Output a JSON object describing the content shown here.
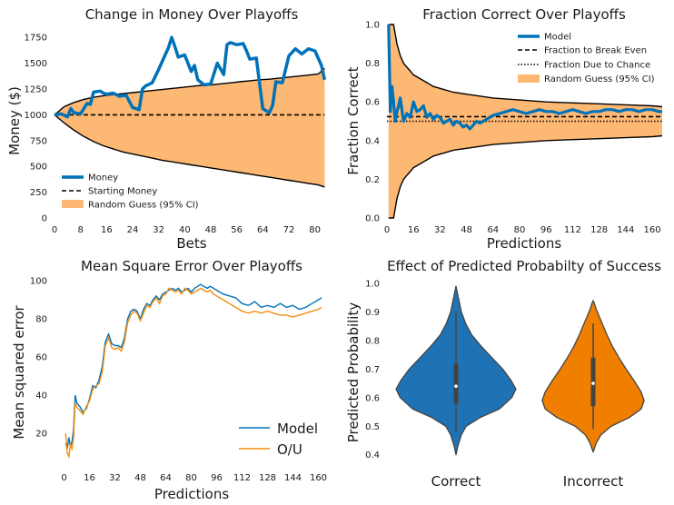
{
  "colors": {
    "model": "#0072b8",
    "band": "#fdb874",
    "band_edge": "#000000",
    "ou": "#f28e0e",
    "violin_correct": "#1f72b4",
    "violin_incorrect": "#f07f00",
    "violin_edge": "#444444"
  },
  "chart_data": [
    {
      "id": "money",
      "type": "line",
      "title": "Change in Money Over Playoffs",
      "xlabel": "Bets",
      "ylabel": "Money ($)",
      "xlim": [
        0,
        84
      ],
      "ylim": [
        0,
        1875
      ],
      "xticks": [
        0,
        8,
        16,
        24,
        32,
        40,
        48,
        56,
        64,
        72,
        80
      ],
      "yticks": [
        0,
        250,
        500,
        750,
        1000,
        1250,
        1500,
        1750
      ],
      "legend": {
        "placement": "lower-left",
        "entries": [
          "Money",
          "Starting Money",
          "Random Guess (95% CI)"
        ]
      },
      "series": [
        {
          "name": "Money",
          "x": [
            0,
            2,
            4,
            5,
            6,
            8,
            9,
            10,
            11,
            12,
            14,
            15,
            16,
            18,
            20,
            22,
            24,
            26,
            27,
            28,
            30,
            32,
            34,
            35,
            36,
            37,
            38,
            40,
            42,
            43,
            44,
            46,
            48,
            50,
            52,
            53,
            54,
            56,
            58,
            59,
            60,
            62,
            64,
            66,
            67,
            68,
            70,
            72,
            74,
            76,
            78,
            80,
            82,
            83
          ],
          "y": [
            1000,
            1010,
            980,
            1060,
            1020,
            1010,
            1060,
            1110,
            1100,
            1220,
            1230,
            1210,
            1200,
            1210,
            1180,
            1190,
            1070,
            1050,
            1250,
            1280,
            1310,
            1440,
            1580,
            1650,
            1750,
            1660,
            1560,
            1580,
            1420,
            1480,
            1340,
            1290,
            1300,
            1500,
            1390,
            1680,
            1700,
            1680,
            1690,
            1620,
            1540,
            1550,
            1060,
            1020,
            1090,
            1320,
            1310,
            1570,
            1640,
            1590,
            1640,
            1620,
            1480,
            1340
          ]
        },
        {
          "name": "Starting Money",
          "x": [
            0,
            83
          ],
          "y": [
            1000,
            1000
          ]
        }
      ],
      "band": {
        "name": "Random Guess (95% CI)",
        "x": [
          0,
          3,
          6,
          9,
          12,
          15,
          18,
          21,
          24,
          27,
          30,
          33,
          36,
          39,
          42,
          45,
          48,
          51,
          54,
          57,
          60,
          63,
          66,
          69,
          72,
          75,
          78,
          81,
          83
        ],
        "upper": [
          1000,
          1080,
          1120,
          1150,
          1170,
          1185,
          1195,
          1205,
          1215,
          1225,
          1235,
          1245,
          1255,
          1265,
          1275,
          1285,
          1290,
          1300,
          1310,
          1320,
          1330,
          1340,
          1345,
          1355,
          1365,
          1375,
          1385,
          1395,
          1450
        ],
        "lower": [
          1000,
          920,
          850,
          790,
          740,
          700,
          670,
          640,
          620,
          600,
          580,
          560,
          545,
          530,
          515,
          500,
          485,
          470,
          455,
          440,
          425,
          410,
          395,
          380,
          365,
          350,
          335,
          320,
          300
        ]
      }
    },
    {
      "id": "fraction",
      "type": "line",
      "title": "Fraction Correct Over Playoffs",
      "xlabel": "Predictions",
      "ylabel": "Fraction Correct",
      "xlim": [
        0,
        166
      ],
      "ylim": [
        0,
        1.0
      ],
      "xticks": [
        0,
        16,
        32,
        48,
        64,
        80,
        96,
        112,
        128,
        144,
        160
      ],
      "yticks": [
        0.0,
        0.2,
        0.4,
        0.6,
        0.8,
        1.0
      ],
      "legend": {
        "placement": "top-right",
        "entries": [
          "Model",
          "Fraction to Break Even",
          "Fraction Due to Chance",
          "Random Guess (95% CI)"
        ]
      },
      "series": [
        {
          "name": "Model",
          "x": [
            1,
            2,
            3,
            4,
            5,
            6,
            7,
            8,
            10,
            12,
            14,
            16,
            18,
            20,
            22,
            24,
            26,
            28,
            30,
            32,
            34,
            36,
            38,
            40,
            42,
            44,
            46,
            48,
            50,
            52,
            54,
            56,
            58,
            60,
            62,
            64,
            68,
            72,
            76,
            80,
            84,
            88,
            92,
            96,
            100,
            104,
            108,
            112,
            116,
            120,
            124,
            128,
            132,
            136,
            140,
            144,
            148,
            152,
            156,
            160,
            164,
            166
          ],
          "y": [
            1.0,
            0.55,
            0.68,
            0.6,
            0.5,
            0.55,
            0.58,
            0.62,
            0.5,
            0.54,
            0.52,
            0.6,
            0.55,
            0.56,
            0.58,
            0.52,
            0.54,
            0.51,
            0.53,
            0.52,
            0.49,
            0.5,
            0.51,
            0.48,
            0.5,
            0.49,
            0.47,
            0.48,
            0.46,
            0.48,
            0.5,
            0.49,
            0.5,
            0.51,
            0.52,
            0.53,
            0.54,
            0.55,
            0.56,
            0.55,
            0.54,
            0.55,
            0.56,
            0.55,
            0.55,
            0.54,
            0.55,
            0.56,
            0.55,
            0.54,
            0.55,
            0.55,
            0.56,
            0.56,
            0.55,
            0.56,
            0.56,
            0.55,
            0.56,
            0.56,
            0.55,
            0.55
          ]
        },
        {
          "name": "Fraction to Break Even",
          "x": [
            0,
            166
          ],
          "y": [
            0.524,
            0.524
          ]
        },
        {
          "name": "Fraction Due to Chance",
          "x": [
            0,
            166
          ],
          "y": [
            0.5,
            0.5
          ]
        }
      ],
      "band": {
        "name": "Random Guess (95% CI)",
        "x": [
          1,
          2,
          4,
          6,
          8,
          10,
          12,
          14,
          16,
          20,
          24,
          28,
          32,
          40,
          48,
          56,
          64,
          80,
          96,
          112,
          128,
          144,
          160,
          166
        ],
        "upper": [
          1.0,
          1.0,
          1.0,
          0.9,
          0.84,
          0.8,
          0.78,
          0.76,
          0.74,
          0.72,
          0.7,
          0.68,
          0.67,
          0.65,
          0.64,
          0.63,
          0.62,
          0.61,
          0.6,
          0.595,
          0.59,
          0.585,
          0.58,
          0.575
        ],
        "lower": [
          0.0,
          0.0,
          0.0,
          0.1,
          0.16,
          0.2,
          0.22,
          0.24,
          0.26,
          0.28,
          0.3,
          0.32,
          0.33,
          0.35,
          0.36,
          0.37,
          0.38,
          0.39,
          0.4,
          0.405,
          0.41,
          0.415,
          0.42,
          0.425
        ]
      }
    },
    {
      "id": "mse",
      "type": "line",
      "title": "Mean Square Error Over Playoffs",
      "xlabel": "Predictions",
      "ylabel": "Mean squared error",
      "xlim": [
        -6,
        166
      ],
      "ylim": [
        3,
        100
      ],
      "xticks": [
        0,
        16,
        32,
        48,
        64,
        80,
        96,
        112,
        128,
        144,
        160
      ],
      "yticks": [
        20,
        40,
        60,
        80,
        100
      ],
      "legend": {
        "placement": "lower-right",
        "entries": [
          "Model",
          "O/U"
        ]
      },
      "series": [
        {
          "name": "Model",
          "x": [
            1,
            2,
            3,
            4,
            5,
            6,
            7,
            8,
            10,
            12,
            14,
            16,
            18,
            20,
            22,
            24,
            26,
            28,
            30,
            32,
            34,
            36,
            38,
            40,
            42,
            44,
            46,
            48,
            50,
            52,
            54,
            56,
            58,
            60,
            62,
            64,
            66,
            68,
            70,
            72,
            74,
            76,
            78,
            80,
            82,
            84,
            86,
            88,
            90,
            92,
            94,
            96,
            100,
            104,
            108,
            112,
            116,
            120,
            124,
            128,
            132,
            136,
            140,
            144,
            148,
            152,
            156,
            160,
            162
          ],
          "y": [
            15,
            12,
            18,
            13,
            16,
            22,
            40,
            36,
            34,
            31,
            33,
            38,
            45,
            44,
            48,
            55,
            68,
            72,
            67,
            66,
            66,
            65,
            70,
            80,
            84,
            85,
            84,
            80,
            85,
            88,
            87,
            90,
            92,
            90,
            93,
            94,
            95,
            96,
            95,
            96,
            94,
            95,
            96,
            94,
            96,
            97,
            98,
            97,
            96,
            97,
            96,
            95,
            93,
            92,
            91,
            88,
            87,
            89,
            86,
            87,
            86,
            88,
            86,
            87,
            85,
            86,
            88,
            90,
            91
          ]
        },
        {
          "name": "O/U",
          "x": [
            1,
            2,
            3,
            4,
            5,
            6,
            7,
            8,
            10,
            12,
            14,
            16,
            18,
            20,
            22,
            24,
            26,
            28,
            30,
            32,
            34,
            36,
            38,
            40,
            42,
            44,
            46,
            48,
            50,
            52,
            54,
            56,
            58,
            60,
            62,
            64,
            66,
            68,
            70,
            72,
            74,
            76,
            78,
            80,
            82,
            84,
            86,
            88,
            90,
            92,
            94,
            96,
            100,
            104,
            108,
            112,
            116,
            120,
            124,
            128,
            132,
            136,
            140,
            144,
            148,
            152,
            156,
            160,
            162
          ],
          "y": [
            20,
            10,
            8,
            14,
            12,
            18,
            36,
            34,
            32,
            30,
            34,
            37,
            43,
            45,
            46,
            52,
            66,
            70,
            65,
            64,
            65,
            63,
            68,
            78,
            82,
            84,
            83,
            79,
            83,
            87,
            86,
            89,
            91,
            88,
            92,
            93,
            96,
            95,
            94,
            95,
            93,
            96,
            95,
            93,
            94,
            95,
            96,
            95,
            94,
            95,
            93,
            92,
            90,
            88,
            86,
            84,
            83,
            84,
            83,
            84,
            83,
            82,
            82,
            81,
            82,
            83,
            84,
            85,
            86
          ]
        }
      ]
    },
    {
      "id": "violin",
      "type": "violin",
      "title": "Effect of Predicted Probabilty of Success",
      "xlabel": "",
      "ylabel": "Predicted Probability",
      "ylim": [
        0.38,
        1.0
      ],
      "yticks": [
        0.4,
        0.5,
        0.6,
        0.7,
        0.8,
        0.9,
        1.0
      ],
      "categories": [
        "Correct",
        "Incorrect"
      ],
      "violins": [
        {
          "category": "Correct",
          "min": 0.48,
          "q1": 0.58,
          "median": 0.64,
          "q3": 0.72,
          "max": 0.9,
          "profile": [
            [
              0.4,
              0.0
            ],
            [
              0.43,
              0.03
            ],
            [
              0.47,
              0.09
            ],
            [
              0.5,
              0.17
            ],
            [
              0.53,
              0.4
            ],
            [
              0.56,
              0.72
            ],
            [
              0.6,
              0.93
            ],
            [
              0.63,
              1.0
            ],
            [
              0.66,
              0.92
            ],
            [
              0.7,
              0.78
            ],
            [
              0.74,
              0.6
            ],
            [
              0.78,
              0.42
            ],
            [
              0.82,
              0.26
            ],
            [
              0.86,
              0.16
            ],
            [
              0.9,
              0.09
            ],
            [
              0.94,
              0.05
            ],
            [
              0.97,
              0.02
            ],
            [
              0.99,
              0.0
            ]
          ]
        },
        {
          "category": "Incorrect",
          "min": 0.49,
          "q1": 0.57,
          "median": 0.65,
          "q3": 0.74,
          "max": 0.86,
          "profile": [
            [
              0.41,
              0.0
            ],
            [
              0.44,
              0.05
            ],
            [
              0.47,
              0.13
            ],
            [
              0.5,
              0.3
            ],
            [
              0.53,
              0.6
            ],
            [
              0.56,
              0.8
            ],
            [
              0.59,
              0.85
            ],
            [
              0.62,
              0.8
            ],
            [
              0.66,
              0.68
            ],
            [
              0.7,
              0.55
            ],
            [
              0.74,
              0.43
            ],
            [
              0.78,
              0.32
            ],
            [
              0.82,
              0.23
            ],
            [
              0.86,
              0.15
            ],
            [
              0.89,
              0.09
            ],
            [
              0.91,
              0.05
            ],
            [
              0.93,
              0.02
            ],
            [
              0.94,
              0.0
            ]
          ]
        }
      ]
    }
  ]
}
